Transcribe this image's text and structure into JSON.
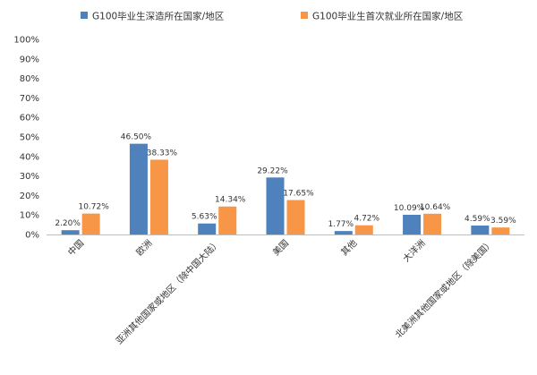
{
  "chart_data": {
    "type": "bar",
    "title": "",
    "xlabel": "",
    "ylabel": "",
    "ylim": [
      0,
      100
    ],
    "yticks": [
      0,
      10,
      20,
      30,
      40,
      50,
      60,
      70,
      80,
      90,
      100
    ],
    "ytick_labels": [
      "0%",
      "10%",
      "20%",
      "30%",
      "40%",
      "50%",
      "60%",
      "70%",
      "80%",
      "90%",
      "100%"
    ],
    "grid": false,
    "legend_position": "top",
    "categories": [
      "中国",
      "欧洲",
      "亚洲其他国家或地区（除中国大陆）",
      "美国",
      "其他",
      "大洋洲",
      "北美洲其他国家或地区（除美国）"
    ],
    "series": [
      {
        "name": "G100毕业生深造所在国家/地区",
        "color": "#4F81BD",
        "values": [
          2.2,
          46.5,
          5.63,
          29.22,
          1.77,
          10.09,
          4.59
        ],
        "labels": [
          "2.20%",
          "46.50%",
          "5.63%",
          "29.22%",
          "1.77%",
          "10.09%",
          "4.59%"
        ]
      },
      {
        "name": "G100毕业生首次就业所在国家/地区",
        "color": "#F79646",
        "values": [
          10.72,
          38.33,
          14.34,
          17.65,
          4.72,
          10.64,
          3.59
        ],
        "labels": [
          "10.72%",
          "38.33%",
          "14.34%",
          "17.65%",
          "4.72%",
          "10.64%",
          "3.59%"
        ]
      }
    ]
  }
}
